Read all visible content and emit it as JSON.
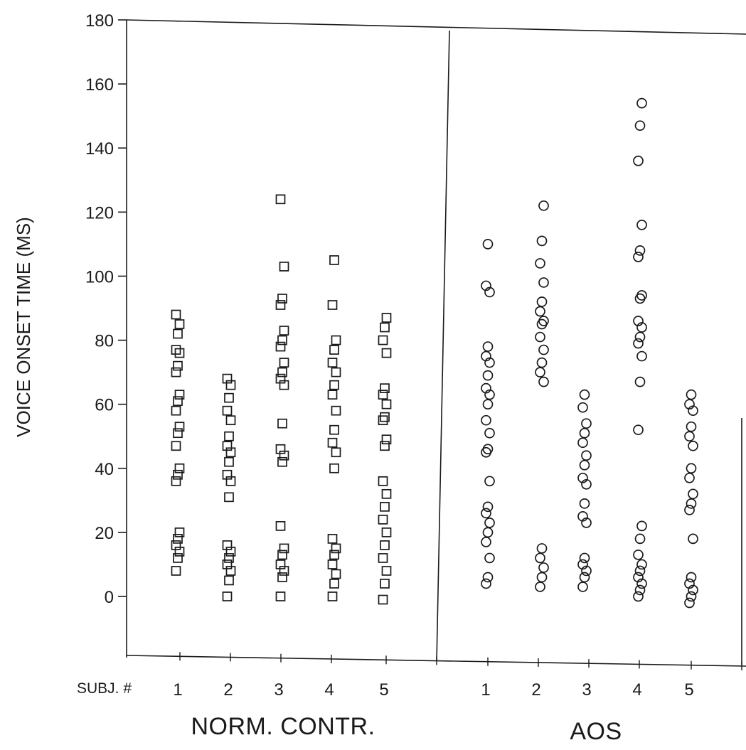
{
  "chart_data": {
    "type": "scatter",
    "ylabel": "VOICE ONSET TIME (MS)",
    "ylim": [
      -20,
      180
    ],
    "y_ticks": [
      180,
      160,
      140,
      120,
      100,
      80,
      60,
      40,
      20,
      0
    ],
    "y_tick_labels": [
      "180",
      "160",
      "140",
      "120",
      "100",
      "80",
      "60",
      "40",
      "20",
      "0"
    ],
    "x_axis_prefix_label": "SUBJ. #",
    "grid": false,
    "groups": [
      {
        "label": "NORM. CONTR.",
        "marker": "square",
        "subjects": [
          {
            "subject": "1",
            "values": [
              8,
              12,
              14,
              16,
              18,
              20,
              36,
              38,
              40,
              47,
              51,
              53,
              58,
              61,
              63,
              70,
              72,
              76,
              77,
              82,
              85,
              88
            ]
          },
          {
            "subject": "2",
            "values": [
              0,
              5,
              8,
              10,
              12,
              14,
              16,
              31,
              36,
              38,
              42,
              45,
              47,
              50,
              55,
              58,
              62,
              66,
              68
            ]
          },
          {
            "subject": "3",
            "values": [
              0,
              6,
              8,
              10,
              13,
              15,
              22,
              42,
              44,
              46,
              54,
              66,
              68,
              70,
              73,
              78,
              80,
              83,
              91,
              93,
              103,
              124
            ]
          },
          {
            "subject": "4",
            "values": [
              0,
              4,
              7,
              10,
              13,
              15,
              18,
              40,
              45,
              48,
              52,
              58,
              63,
              66,
              70,
              73,
              77,
              80,
              91,
              105
            ]
          },
          {
            "subject": "5",
            "values": [
              -1,
              4,
              8,
              12,
              16,
              20,
              24,
              28,
              32,
              36,
              47,
              49,
              55,
              56,
              60,
              63,
              65,
              76,
              80,
              84,
              87
            ]
          }
        ]
      },
      {
        "label": "AOS",
        "marker": "circle",
        "subjects": [
          {
            "subject": "1",
            "values": [
              4,
              6,
              12,
              17,
              20,
              23,
              26,
              28,
              36,
              45,
              46,
              51,
              55,
              60,
              63,
              65,
              69,
              73,
              75,
              78,
              95,
              97,
              110
            ]
          },
          {
            "subject": "2",
            "values": [
              3,
              6,
              9,
              12,
              15,
              67,
              70,
              73,
              77,
              81,
              85,
              86,
              89,
              92,
              98,
              104,
              111,
              122
            ]
          },
          {
            "subject": "3",
            "values": [
              3,
              6,
              8,
              10,
              12,
              23,
              25,
              29,
              35,
              37,
              41,
              44,
              48,
              51,
              54,
              59,
              63
            ]
          },
          {
            "subject": "4",
            "values": [
              0,
              2,
              4,
              6,
              8,
              10,
              13,
              18,
              22,
              52,
              67,
              75,
              79,
              81,
              84,
              86,
              93,
              94,
              106,
              108,
              116,
              136,
              147,
              154
            ]
          },
          {
            "subject": "5",
            "values": [
              -2,
              0,
              2,
              4,
              6,
              18,
              27,
              29,
              32,
              37,
              40,
              47,
              50,
              53,
              58,
              60,
              63
            ]
          }
        ]
      }
    ]
  }
}
